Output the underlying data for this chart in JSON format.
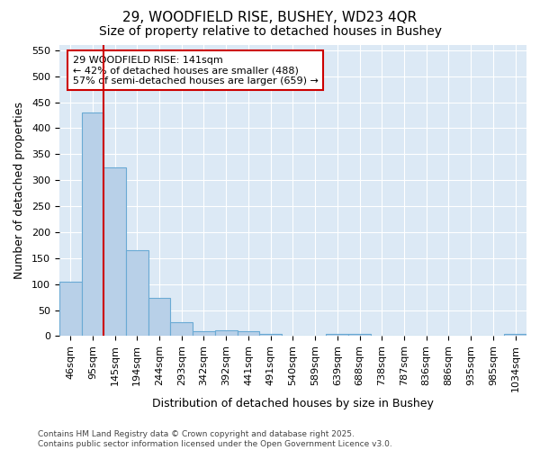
{
  "title1": "29, WOODFIELD RISE, BUSHEY, WD23 4QR",
  "title2": "Size of property relative to detached houses in Bushey",
  "xlabel": "Distribution of detached houses by size in Bushey",
  "ylabel": "Number of detached properties",
  "categories": [
    "46sqm",
    "95sqm",
    "145sqm",
    "194sqm",
    "244sqm",
    "293sqm",
    "342sqm",
    "392sqm",
    "441sqm",
    "491sqm",
    "540sqm",
    "589sqm",
    "639sqm",
    "688sqm",
    "738sqm",
    "787sqm",
    "836sqm",
    "886sqm",
    "935sqm",
    "985sqm",
    "1034sqm"
  ],
  "values": [
    104,
    430,
    325,
    165,
    73,
    27,
    10,
    12,
    10,
    5,
    0,
    0,
    5,
    5,
    0,
    0,
    0,
    0,
    0,
    0,
    4
  ],
  "bar_color": "#b8d0e8",
  "bar_edge_color": "#6aaad4",
  "vline_x_index": 2,
  "vline_color": "#cc0000",
  "annotation_text": "29 WOODFIELD RISE: 141sqm\n← 42% of detached houses are smaller (488)\n57% of semi-detached houses are larger (659) →",
  "annotation_box_facecolor": "#ffffff",
  "annotation_box_edgecolor": "#cc0000",
  "ylim": [
    0,
    560
  ],
  "yticks": [
    0,
    50,
    100,
    150,
    200,
    250,
    300,
    350,
    400,
    450,
    500,
    550
  ],
  "footnote": "Contains HM Land Registry data © Crown copyright and database right 2025.\nContains public sector information licensed under the Open Government Licence v3.0.",
  "fig_bg_color": "#ffffff",
  "plot_bg_color": "#dce9f5",
  "grid_color": "#ffffff",
  "title_fontsize": 11,
  "subtitle_fontsize": 10,
  "axis_label_fontsize": 9,
  "tick_fontsize": 8,
  "annotation_fontsize": 8,
  "footnote_fontsize": 6.5
}
